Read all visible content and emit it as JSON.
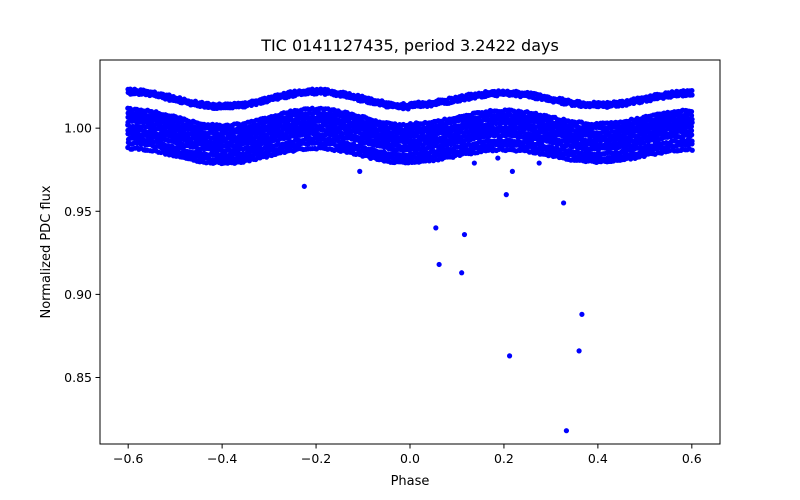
{
  "chart_data": {
    "type": "scatter",
    "title": "TIC 0141127435, period 3.2422 days",
    "xlabel": "Phase",
    "ylabel": "Normalized PDC flux",
    "xlim": [
      -0.66,
      0.66
    ],
    "ylim": [
      0.81,
      1.041
    ],
    "xticks": [
      -0.6,
      -0.4,
      -0.2,
      0.0,
      0.2,
      0.4,
      0.6
    ],
    "xtick_labels": [
      "−0.6",
      "−0.4",
      "−0.2",
      "0.0",
      "0.2",
      "0.4",
      "0.6"
    ],
    "yticks": [
      0.85,
      0.9,
      0.95,
      1.0
    ],
    "ytick_labels": [
      "0.85",
      "0.90",
      "0.95",
      "1.00"
    ],
    "grid": false,
    "marker_color": "#0000ff",
    "phase_range": [
      -0.6,
      0.6
    ],
    "curve_bands": {
      "description": "Phase-folded light curve: dense bands of points following a smooth modulation",
      "band_levels": [
        0.9835,
        0.986,
        0.9885,
        0.9915,
        0.994,
        0.9965,
        0.999,
        1.0015,
        1.004,
        1.0065,
        1.0165,
        1.0185
      ],
      "modulation_amplitude": 0.009
    },
    "outlier_points": [
      {
        "x": -0.225,
        "y": 0.965
      },
      {
        "x": -0.107,
        "y": 0.974
      },
      {
        "x": 0.055,
        "y": 0.94
      },
      {
        "x": 0.062,
        "y": 0.918
      },
      {
        "x": 0.11,
        "y": 0.913
      },
      {
        "x": 0.116,
        "y": 0.936
      },
      {
        "x": 0.137,
        "y": 0.979
      },
      {
        "x": 0.187,
        "y": 0.982
      },
      {
        "x": 0.205,
        "y": 0.96
      },
      {
        "x": 0.212,
        "y": 0.863
      },
      {
        "x": 0.218,
        "y": 0.974
      },
      {
        "x": 0.275,
        "y": 0.979
      },
      {
        "x": 0.3,
        "y": 0.985
      },
      {
        "x": 0.327,
        "y": 0.955
      },
      {
        "x": 0.333,
        "y": 0.818
      },
      {
        "x": 0.36,
        "y": 0.866
      },
      {
        "x": 0.366,
        "y": 0.888
      }
    ]
  }
}
